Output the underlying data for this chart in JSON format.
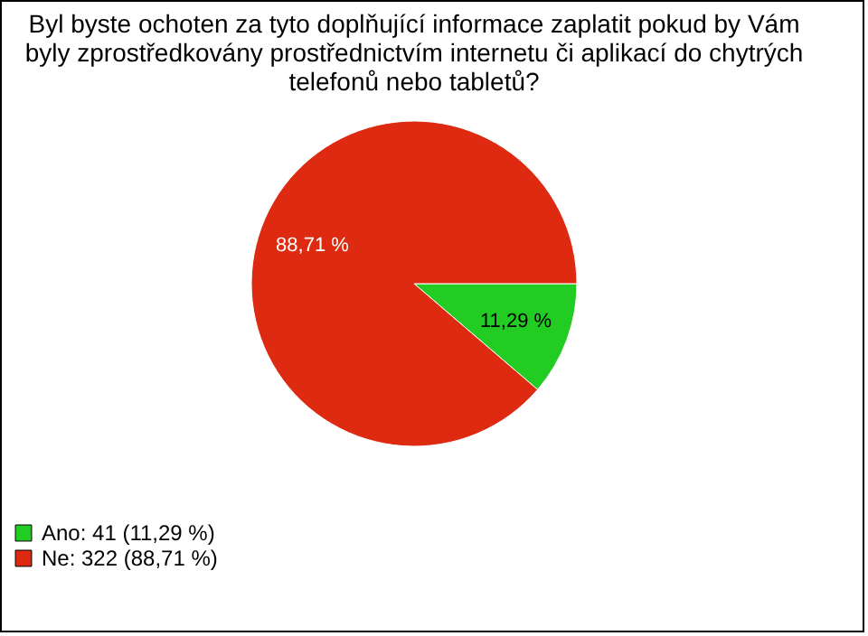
{
  "chart_data": {
    "type": "pie",
    "title": "Byl byste ochoten za tyto doplňující informace zaplatit pokud by Vám\nbyly zprostředkovány prostřednictvím internetu či aplikací do chytrých\ntelefonů nebo tabletů?",
    "categories": [
      "Ano: 41 (11,29 %)",
      "Ne: 322 (88,71 %)"
    ],
    "values": [
      11.29,
      88.71
    ],
    "value_labels": [
      "11,29 %",
      "88,71 %"
    ],
    "colors": [
      "#22cc22",
      "#dd2a11"
    ],
    "legend": "bottom left"
  }
}
